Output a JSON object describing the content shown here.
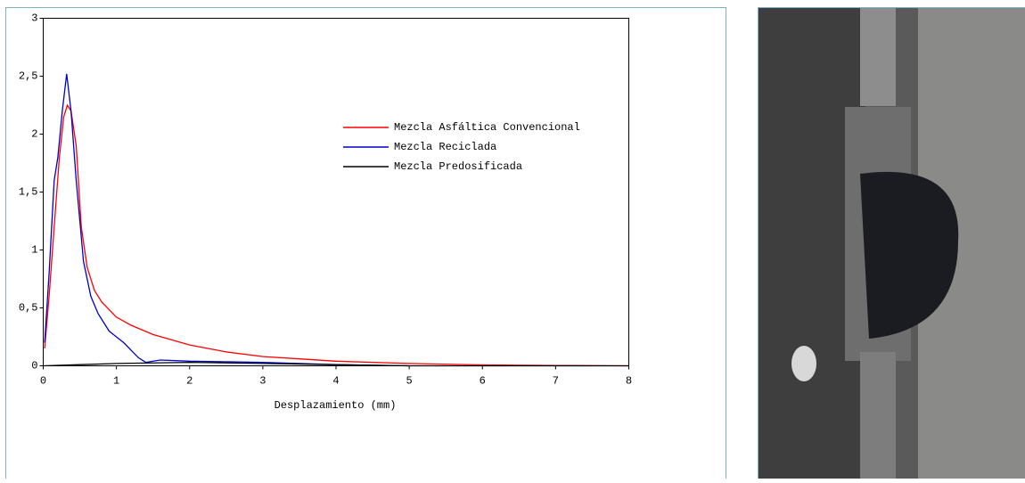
{
  "chart_data": {
    "type": "line",
    "x_label": "Desplazamiento (mm)",
    "xlim": [
      0,
      8
    ],
    "xticks": [
      0,
      1,
      2,
      3,
      4,
      5,
      6,
      7,
      8
    ],
    "ylim": [
      0,
      3
    ],
    "yticks": [
      0,
      {
        "value": 0.5,
        "label": "0,5"
      },
      1,
      {
        "value": 1.5,
        "label": "1,5"
      },
      2,
      {
        "value": 2.5,
        "label": "2,5"
      },
      3
    ],
    "series": [
      {
        "name": "Mezcla Asfáltica Convencional",
        "color": "#ff0000",
        "x": [
          0.02,
          0.08,
          0.15,
          0.22,
          0.28,
          0.33,
          0.38,
          0.45,
          0.52,
          0.6,
          0.7,
          0.8,
          1.0,
          1.2,
          1.5,
          2.0,
          2.5,
          3.0,
          3.5,
          4.0,
          5.0,
          6.0,
          7.0,
          8.0
        ],
        "values": [
          0.15,
          0.6,
          1.2,
          1.8,
          2.15,
          2.25,
          2.2,
          1.9,
          1.2,
          0.85,
          0.65,
          0.55,
          0.42,
          0.35,
          0.27,
          0.18,
          0.12,
          0.08,
          0.06,
          0.04,
          0.02,
          0.008,
          0.003,
          0
        ]
      },
      {
        "name": "Mezcla Reciclada",
        "color": "#0000cc",
        "x": [
          0.02,
          0.08,
          0.15,
          0.2,
          0.26,
          0.32,
          0.38,
          0.45,
          0.55,
          0.65,
          0.75,
          0.9,
          1.1,
          1.3,
          1.4,
          1.6,
          2.0,
          3.0,
          4.0,
          5.0
        ],
        "values": [
          0.2,
          0.8,
          1.6,
          1.8,
          2.2,
          2.52,
          2.2,
          1.6,
          0.9,
          0.6,
          0.45,
          0.3,
          0.2,
          0.07,
          0.03,
          0.05,
          0.04,
          0.03,
          0.01,
          0
        ]
      },
      {
        "name": "Mezcla Predosificada",
        "color": "#000000",
        "x": [
          0,
          0.5,
          1.0,
          2.0,
          3.0,
          4.0,
          5.0,
          8.0
        ],
        "values": [
          0,
          0.01,
          0.02,
          0.03,
          0.02,
          0.01,
          0,
          0
        ]
      }
    ]
  }
}
